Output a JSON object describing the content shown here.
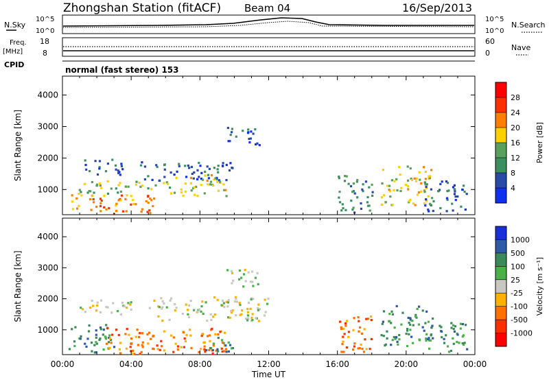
{
  "header": {
    "station": "Zhongshan Station (fitACF)",
    "beam": "Beam 04",
    "date": "16/Sep/2013"
  },
  "top_panel": {
    "nsky_label": "N.Sky",
    "nsearch_label": "N.Search",
    "nsky_ticks": [
      "10^5",
      "10^0"
    ],
    "nsearch_ticks": [
      "10^5",
      "10^0"
    ],
    "freq_label": "Freq.",
    "freq_unit": "[MHz]",
    "freq_ticks": [
      "18",
      "8"
    ],
    "nave_label": "Nave",
    "nave_ticks": [
      "60",
      "0"
    ],
    "cpid_label": "CPID",
    "cpid_text": "normal (fast stereo) 153"
  },
  "chart_data": [
    {
      "type": "heatmap",
      "name": "Power",
      "ylabel": "Slant Range [km]",
      "xlabel": "",
      "y_ticks": [
        1000,
        2000,
        3000,
        4000
      ],
      "ylim": [
        200,
        4600
      ],
      "xlim_hours": [
        0,
        24
      ],
      "colorbar": {
        "label": "Power [dB]",
        "ticks": [
          "4",
          "8",
          "12",
          "16",
          "20",
          "24",
          "28"
        ],
        "colors": [
          "#1030f0",
          "#2a4aa8",
          "#3c9060",
          "#58a05c",
          "#ffd000",
          "#ff8000",
          "#ff3000",
          "#ff0000"
        ]
      },
      "regions": [
        {
          "t0": 0.5,
          "t1": 5.5,
          "r0": 250,
          "r1": 900,
          "level": 5
        },
        {
          "t0": 0.8,
          "t1": 6.5,
          "r0": 900,
          "r1": 1300,
          "level": 3
        },
        {
          "t0": 1.0,
          "t1": 3.5,
          "r0": 1500,
          "r1": 2000,
          "level": 1
        },
        {
          "t0": 4.5,
          "t1": 10.0,
          "r0": 1300,
          "r1": 1900,
          "level": 1
        },
        {
          "t0": 6.5,
          "t1": 9.5,
          "r0": 800,
          "r1": 1500,
          "level": 4
        },
        {
          "t0": 9.5,
          "t1": 11.5,
          "r0": 2400,
          "r1": 3000,
          "level": 1
        },
        {
          "t0": 16.0,
          "t1": 18.0,
          "r0": 300,
          "r1": 1500,
          "level": 2
        },
        {
          "t0": 18.5,
          "t1": 21.5,
          "r0": 500,
          "r1": 1800,
          "level": 4
        },
        {
          "t0": 21.0,
          "t1": 23.5,
          "r0": 300,
          "r1": 1300,
          "level": 1
        }
      ]
    },
    {
      "type": "heatmap",
      "name": "Velocity",
      "ylabel": "Slant Range [km]",
      "xlabel": "Time UT",
      "y_ticks": [
        1000,
        2000,
        3000,
        4000
      ],
      "ylim": [
        200,
        4600
      ],
      "xlim_hours": [
        0,
        24
      ],
      "x_ticks": [
        "00:00",
        "04:00",
        "08:00",
        "12:00",
        "16:00",
        "20:00",
        "00:00"
      ],
      "colorbar": {
        "label": "Velocity [m s⁻¹]",
        "ticks": [
          "1000",
          "500",
          "100",
          "25",
          "-25",
          "-100",
          "-500",
          "-1000"
        ],
        "colors": [
          "#1830d8",
          "#2e5aa8",
          "#3a8a58",
          "#4ab048",
          "#c8c8c0",
          "#ffb000",
          "#ff7000",
          "#ff3000",
          "#ff0000"
        ]
      },
      "regions": [
        {
          "t0": 0.3,
          "t1": 3.0,
          "r0": 300,
          "r1": 1200,
          "level": 2
        },
        {
          "t0": 2.5,
          "t1": 9.5,
          "r0": 250,
          "r1": 1100,
          "level": 6
        },
        {
          "t0": 1.0,
          "t1": 4.0,
          "r0": 1500,
          "r1": 2000,
          "level": 4
        },
        {
          "t0": 5.0,
          "t1": 12.0,
          "r0": 1300,
          "r1": 2100,
          "level": 4
        },
        {
          "t0": 9.5,
          "t1": 11.5,
          "r0": 2400,
          "r1": 3000,
          "level": 4
        },
        {
          "t0": 8.0,
          "t1": 10.0,
          "r0": 300,
          "r1": 800,
          "level": 2
        },
        {
          "t0": 16.0,
          "t1": 18.0,
          "r0": 300,
          "r1": 1500,
          "level": 6
        },
        {
          "t0": 18.5,
          "t1": 21.5,
          "r0": 500,
          "r1": 1800,
          "level": 2
        },
        {
          "t0": 21.0,
          "t1": 23.5,
          "r0": 300,
          "r1": 1300,
          "level": 2
        }
      ]
    }
  ]
}
